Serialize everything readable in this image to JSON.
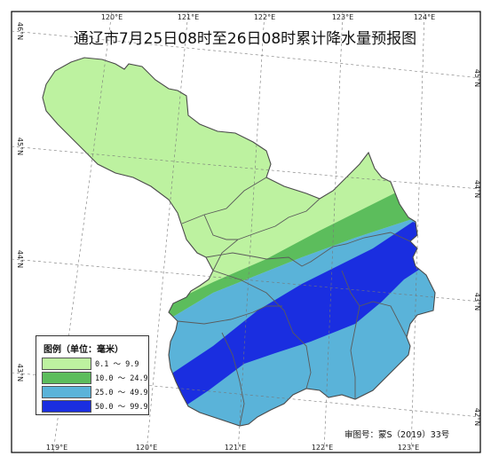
{
  "title": "通辽市7月25日08时至26日08时累计降水量预报图",
  "legend": {
    "title": "图例（单位：毫米）",
    "items": [
      {
        "label": "0.1  ～ 9.9",
        "color": "#bdf2a0"
      },
      {
        "label": "10.0 ～ 24.9",
        "color": "#5cbd5c"
      },
      {
        "label": "25.0 ～ 49.9",
        "color": "#5ab3d9"
      },
      {
        "label": "50.0 ～ 99.9",
        "color": "#1a2ee0"
      }
    ]
  },
  "approval_number": "审图号：蒙S（2019）33号",
  "longitude_labels": {
    "top": [
      "120°E",
      "121°E",
      "122°E",
      "123°E",
      "124°E"
    ],
    "bottom": [
      "119°E",
      "120°E",
      "121°E",
      "122°E",
      "123°E"
    ]
  },
  "latitude_labels": {
    "left": [
      "46°N",
      "45°N",
      "44°N",
      "43°N"
    ],
    "right": [
      "45°N",
      "44°N",
      "43°N",
      "42°N"
    ]
  },
  "colors": {
    "frame": "#000000",
    "graticule": "#777777",
    "boundary": "#4a4a4a",
    "background": "#ffffff"
  }
}
